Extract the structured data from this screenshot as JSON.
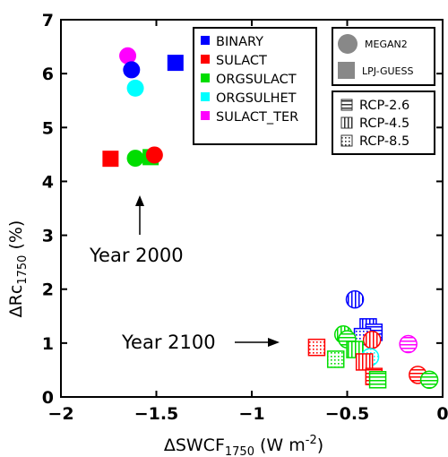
{
  "chart_data": {
    "type": "scatter",
    "xlabel": {
      "main": "ΔSWCF",
      "sub": "1750",
      "unit": " (W m",
      "sup": "-2",
      "close": ")"
    },
    "ylabel": {
      "main": "ΔRc",
      "sub": "1750",
      "unit": " (%)"
    },
    "xlim": [
      -2,
      0
    ],
    "ylim": [
      0,
      7
    ],
    "xticks": [
      -2,
      -1.5,
      -1,
      -0.5,
      0
    ],
    "xtick_labels": [
      "−2",
      "−1.5",
      "−1",
      "−0.5",
      "0"
    ],
    "yticks": [
      0,
      1,
      2,
      3,
      4,
      5,
      6,
      7
    ],
    "ytick_labels": [
      "0",
      "1",
      "2",
      "3",
      "4",
      "5",
      "6",
      "7"
    ],
    "grid": false,
    "colors": {
      "BINARY": "#0000ff",
      "SULACT": "#ff0000",
      "ORGSULACT": "#00dd00",
      "ORGSULHET": "#00ffff",
      "SULACT_TER": "#ff00ff"
    },
    "legend_series": {
      "placement": "top-center",
      "entries": [
        "BINARY",
        "SULACT",
        "ORGSULACT",
        "ORGSULHET",
        "SULACT_TER"
      ]
    },
    "legend_models": {
      "placement": "top-right",
      "entries": [
        {
          "label": "MEGAN2",
          "shape": "circle"
        },
        {
          "label": "LPJ-GUESS",
          "shape": "square"
        }
      ]
    },
    "legend_scenarios": {
      "placement": "right",
      "entries": [
        {
          "label": "RCP-2.6",
          "pattern": "horizontal"
        },
        {
          "label": "RCP-4.5",
          "pattern": "vertical"
        },
        {
          "label": "RCP-8.5",
          "pattern": "dotted"
        }
      ]
    },
    "annotations": [
      {
        "text": "Year 2000",
        "arrow": "up"
      },
      {
        "text": "Year 2100",
        "arrow": "right"
      }
    ],
    "points": [
      {
        "series": "SULACT_TER",
        "model": "MEGAN2",
        "scenario": "",
        "x": -1.65,
        "y": 6.33
      },
      {
        "series": "BINARY",
        "model": "MEGAN2",
        "scenario": "",
        "x": -1.63,
        "y": 6.07
      },
      {
        "series": "BINARY",
        "model": "LPJ-GUESS",
        "scenario": "",
        "x": -1.4,
        "y": 6.2
      },
      {
        "series": "ORGSULHET",
        "model": "MEGAN2",
        "scenario": "",
        "x": -1.61,
        "y": 5.73
      },
      {
        "series": "SULACT",
        "model": "LPJ-GUESS",
        "scenario": "",
        "x": -1.74,
        "y": 4.42
      },
      {
        "series": "ORGSULACT",
        "model": "MEGAN2",
        "scenario": "",
        "x": -1.61,
        "y": 4.43
      },
      {
        "series": "ORGSULACT",
        "model": "LPJ-GUESS",
        "scenario": "",
        "x": -1.53,
        "y": 4.45
      },
      {
        "series": "SULACT",
        "model": "MEGAN2",
        "scenario": "",
        "x": -1.51,
        "y": 4.49
      },
      {
        "series": "BINARY",
        "model": "MEGAN2",
        "scenario": "RCP-4.5",
        "x": -0.46,
        "y": 1.81
      },
      {
        "series": "BINARY",
        "model": "LPJ-GUESS",
        "scenario": "RCP-4.5",
        "x": -0.39,
        "y": 1.3
      },
      {
        "series": "BINARY",
        "model": "LPJ-GUESS",
        "scenario": "RCP-2.6",
        "x": -0.36,
        "y": 1.2
      },
      {
        "series": "BINARY",
        "model": "LPJ-GUESS",
        "scenario": "RCP-8.5",
        "x": -0.42,
        "y": 1.12
      },
      {
        "series": "ORGSULACT",
        "model": "MEGAN2",
        "scenario": "RCP-4.5",
        "x": -0.52,
        "y": 1.16
      },
      {
        "series": "ORGSULACT",
        "model": "MEGAN2",
        "scenario": "RCP-2.6",
        "x": -0.5,
        "y": 1.07
      },
      {
        "series": "SULACT",
        "model": "MEGAN2",
        "scenario": "RCP-4.5",
        "x": -0.37,
        "y": 1.06
      },
      {
        "series": "SULACT_TER",
        "model": "MEGAN2",
        "scenario": "RCP-2.6",
        "x": -0.18,
        "y": 0.98
      },
      {
        "series": "SULACT",
        "model": "LPJ-GUESS",
        "scenario": "RCP-8.5",
        "x": -0.66,
        "y": 0.92
      },
      {
        "series": "ORGSULACT",
        "model": "LPJ-GUESS",
        "scenario": "RCP-4.5",
        "x": -0.46,
        "y": 0.88
      },
      {
        "series": "ORGSULHET",
        "model": "MEGAN2",
        "scenario": "RCP-8.5",
        "x": -0.38,
        "y": 0.74
      },
      {
        "series": "ORGSULACT",
        "model": "LPJ-GUESS",
        "scenario": "RCP-8.5",
        "x": -0.56,
        "y": 0.7
      },
      {
        "series": "SULACT",
        "model": "LPJ-GUESS",
        "scenario": "RCP-4.5",
        "x": -0.41,
        "y": 0.65
      },
      {
        "series": "SULACT",
        "model": "MEGAN2",
        "scenario": "RCP-2.6",
        "x": -0.13,
        "y": 0.41
      },
      {
        "series": "SULACT",
        "model": "LPJ-GUESS",
        "scenario": "RCP-2.6",
        "x": -0.36,
        "y": 0.38
      },
      {
        "series": "ORGSULACT",
        "model": "LPJ-GUESS",
        "scenario": "RCP-2.6",
        "x": -0.34,
        "y": 0.32
      },
      {
        "series": "ORGSULACT",
        "model": "MEGAN2",
        "scenario": "RCP-2.6",
        "x": -0.07,
        "y": 0.32
      }
    ]
  }
}
